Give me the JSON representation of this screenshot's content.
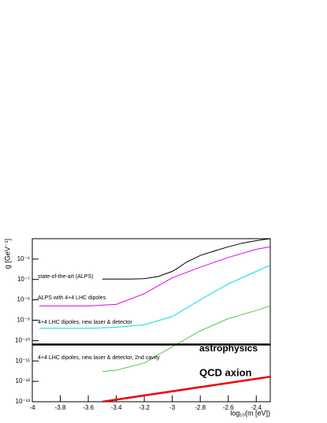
{
  "chart_data": {
    "type": "line",
    "y_log": true,
    "xlabel": "log₁₀(m [eV])",
    "ylabel": "g [GeV⁻¹]",
    "xlim": [
      -4,
      -2.3
    ],
    "ylim": [
      1e-13,
      1e-05
    ],
    "xticks": [
      -4,
      -3.8,
      -3.6,
      -3.4,
      -3.2,
      -3,
      -2.8,
      -2.6,
      -2.4
    ],
    "yticks": [
      {
        "value": 1e-13,
        "label": "10⁻¹³"
      },
      {
        "value": 1e-12,
        "label": "10⁻¹²"
      },
      {
        "value": 1e-11,
        "label": "10⁻¹¹"
      },
      {
        "value": 1e-10,
        "label": "10⁻¹⁰"
      },
      {
        "value": 1e-09,
        "label": "10⁻⁹"
      },
      {
        "value": 1e-08,
        "label": "10⁻⁸"
      },
      {
        "value": 1e-07,
        "label": "10⁻⁷"
      },
      {
        "value": 1e-06,
        "label": "10⁻⁶"
      }
    ],
    "series": [
      {
        "name": "state-of-the-art (ALPS)",
        "color": "#000000",
        "x": [
          -3.5,
          -3.3,
          -3.2,
          -3.1,
          -3.0,
          -2.95,
          -2.9,
          -2.8,
          -2.7,
          -2.6,
          -2.5,
          -2.4,
          -2.3
        ],
        "values": [
          1.05e-07,
          1.05e-07,
          1.1e-07,
          1.4e-07,
          2.5e-07,
          4e-07,
          7e-07,
          1.5e-06,
          2.5e-06,
          4e-06,
          6e-06,
          8e-06,
          1e-05
        ]
      },
      {
        "name": "ALPS with 4+4 LHC dipoles",
        "color": "#e000e0",
        "x": [
          -3.95,
          -3.8,
          -3.6,
          -3.4,
          -3.2,
          -3.0,
          -2.8,
          -2.6,
          -2.4,
          -2.3
        ],
        "values": [
          5e-09,
          5e-09,
          5e-09,
          6e-09,
          2e-08,
          1.2e-07,
          4e-07,
          1.2e-06,
          3e-06,
          4e-06
        ]
      },
      {
        "name": "4+4 LHC dipoles, new laser & detector",
        "color": "#00e0e0",
        "x": [
          -3.95,
          -3.8,
          -3.6,
          -3.4,
          -3.2,
          -3.0,
          -2.8,
          -2.6,
          -2.4,
          -2.3
        ],
        "values": [
          4e-10,
          4e-10,
          4e-10,
          4.5e-10,
          6e-10,
          1.5e-09,
          1e-08,
          6e-08,
          2.5e-07,
          5e-07
        ]
      },
      {
        "name": "4+4 LHC dipoles, new laser & detector, 2nd cavity",
        "color": "#4ccc4c",
        "x": [
          -3.5,
          -3.4,
          -3.2,
          -3.0,
          -2.8,
          -2.6,
          -2.4,
          -2.3
        ],
        "values": [
          3e-12,
          3.5e-12,
          8e-12,
          5e-11,
          3e-10,
          1.2e-09,
          3e-09,
          5e-09
        ]
      },
      {
        "name": "astrophysics",
        "color": "#000000",
        "x": [
          -4,
          -2.3
        ],
        "values": [
          6.4e-11,
          6.4e-11
        ]
      },
      {
        "name": "QCD axion",
        "color": "#ee0000",
        "x": [
          -3.5,
          -2.3
        ],
        "values": [
          1e-13,
          1.7e-12
        ]
      }
    ]
  }
}
